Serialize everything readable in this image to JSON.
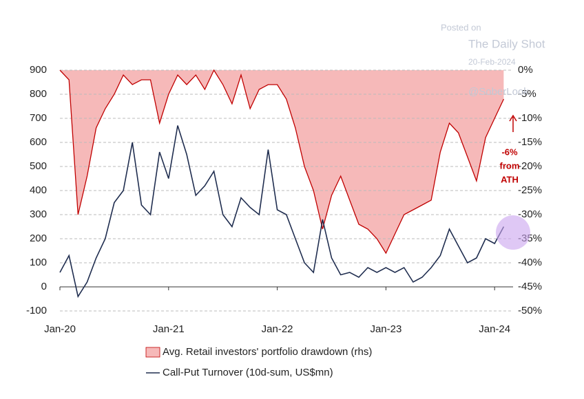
{
  "chart_data": {
    "type": "line",
    "categories": [
      "Jan-20",
      null,
      null,
      null,
      null,
      null,
      null,
      null,
      null,
      null,
      null,
      null,
      "Jan-21",
      null,
      null,
      null,
      null,
      null,
      null,
      null,
      null,
      null,
      null,
      null,
      "Jan-22",
      null,
      null,
      null,
      null,
      null,
      null,
      null,
      null,
      null,
      null,
      null,
      "Jan-23",
      null,
      null,
      null,
      null,
      null,
      null,
      null,
      null,
      null,
      null,
      null,
      "Jan-24",
      null
    ],
    "series": [
      {
        "name": "Avg. Retail investors' portfolio drawdown (rhs)",
        "color": "#c00000",
        "fill": "#f6b9b9",
        "style": "area",
        "axis": "y2",
        "values": [
          0,
          -2,
          -30,
          -22,
          -12,
          -8,
          -5,
          -1,
          -3,
          -2,
          -2,
          -11,
          -5,
          -1,
          -3,
          -1,
          -4,
          0,
          -3,
          -7,
          -1,
          -8,
          -4,
          -3,
          -3,
          -6,
          -12,
          -20,
          -25,
          -33,
          -26,
          -22,
          -27,
          -32,
          -33,
          -35,
          -38,
          -34,
          -30,
          -29,
          -28,
          -27,
          -17,
          -11,
          -13,
          -18,
          -23,
          -14,
          -10,
          -6
        ]
      },
      {
        "name": "Call-Put Turnover (10d-sum, US$mn)",
        "color": "#1f2d4f",
        "style": "line",
        "axis": "y",
        "values": [
          60,
          130,
          -40,
          20,
          120,
          200,
          350,
          400,
          600,
          340,
          300,
          560,
          450,
          670,
          550,
          380,
          420,
          480,
          300,
          250,
          370,
          330,
          300,
          570,
          320,
          300,
          200,
          100,
          60,
          280,
          120,
          50,
          60,
          40,
          80,
          60,
          80,
          60,
          80,
          20,
          40,
          80,
          130,
          240,
          170,
          100,
          120,
          200,
          180,
          250
        ]
      }
    ],
    "ylim": [
      -100,
      900
    ],
    "yticks": [
      -100,
      0,
      100,
      200,
      300,
      400,
      500,
      600,
      700,
      800,
      900
    ],
    "y2lim": [
      -50,
      0
    ],
    "y2ticks": [
      {
        "value": 0,
        "label": "0%"
      },
      {
        "value": -5,
        "label": "-5%"
      },
      {
        "value": -10,
        "label": "-10%"
      },
      {
        "value": -15,
        "label": "-15%"
      },
      {
        "value": -20,
        "label": "-20%"
      },
      {
        "value": -25,
        "label": "-25%"
      },
      {
        "value": -30,
        "label": "-30%"
      },
      {
        "value": -35,
        "label": "-35%"
      },
      {
        "value": -40,
        "label": "-40%"
      },
      {
        "value": -45,
        "label": "-45%"
      },
      {
        "value": -50,
        "label": "-50%"
      }
    ],
    "grid": true,
    "annotation": [
      "-6%",
      "from",
      "ATH"
    ],
    "watermark": [
      "Posted on",
      "The Daily Shot",
      "20-Feb-2024",
      "@SoberLook"
    ]
  }
}
